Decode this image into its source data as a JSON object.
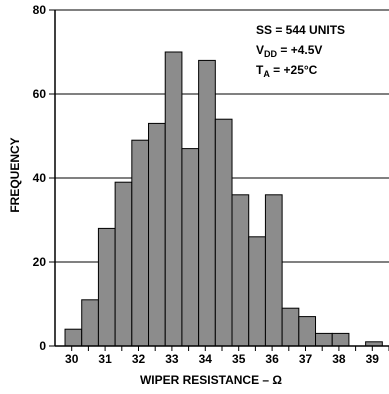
{
  "chart_data": {
    "type": "bar",
    "xlabel": "WIPER RESISTANCE – Ω",
    "ylabel": "FREQUENCY",
    "xticks": [
      "30",
      "31",
      "32",
      "33",
      "34",
      "35",
      "36",
      "37",
      "38",
      "39"
    ],
    "yticks": [
      0,
      20,
      40,
      60,
      80
    ],
    "ylim": [
      0,
      80
    ],
    "xlim": [
      29.5,
      39.5
    ],
    "bin_width": 0.5,
    "bin_starts": [
      29.8,
      30.3,
      30.8,
      31.3,
      31.8,
      32.3,
      32.8,
      33.3,
      33.8,
      34.3,
      34.8,
      35.3,
      35.8,
      36.3,
      36.8,
      37.3,
      37.8,
      38.3,
      38.8
    ],
    "values": [
      4,
      11,
      28,
      39,
      49,
      53,
      70,
      47,
      68,
      54,
      36,
      26,
      36,
      9,
      7,
      3,
      3,
      0,
      1
    ],
    "grid": "horizontal",
    "bar_color": "#8c8c8c",
    "annotations": [
      "SS = 544 UNITS",
      "V",
      "DD",
      " = +4.5V",
      "T",
      "A",
      " = +25°C"
    ]
  }
}
